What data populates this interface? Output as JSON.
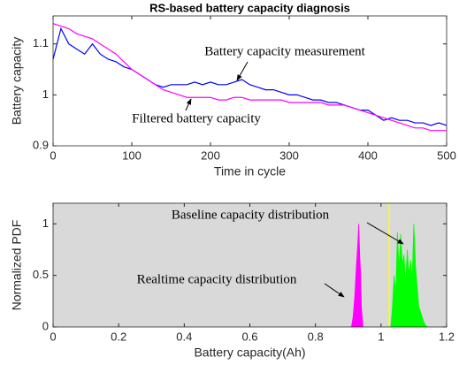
{
  "chart_data": [
    {
      "type": "line",
      "title": "RS-based battery capacity diagnosis",
      "xlabel": "Time in cycle",
      "ylabel": "Battery capacity",
      "x": [
        0,
        10,
        20,
        30,
        40,
        50,
        60,
        70,
        80,
        90,
        100,
        110,
        120,
        130,
        140,
        150,
        160,
        170,
        180,
        190,
        200,
        210,
        220,
        230,
        240,
        250,
        260,
        270,
        280,
        290,
        300,
        310,
        320,
        330,
        340,
        350,
        360,
        370,
        380,
        390,
        400,
        410,
        420,
        430,
        440,
        450,
        460,
        470,
        480,
        490,
        500
      ],
      "series": [
        {
          "name": "Battery capacity measurement",
          "color": "#0000ff",
          "values": [
            1.07,
            1.13,
            1.1,
            1.09,
            1.08,
            1.1,
            1.08,
            1.07,
            1.065,
            1.055,
            1.05,
            1.04,
            1.03,
            1.02,
            1.015,
            1.02,
            1.02,
            1.02,
            1.025,
            1.02,
            1.025,
            1.02,
            1.02,
            1.025,
            1.03,
            1.02,
            1.015,
            1.01,
            1.01,
            1.005,
            1.0,
            1.0,
            0.995,
            0.99,
            0.99,
            0.985,
            0.985,
            0.98,
            0.975,
            0.97,
            0.97,
            0.96,
            0.95,
            0.955,
            0.95,
            0.95,
            0.945,
            0.945,
            0.94,
            0.945,
            0.94
          ]
        },
        {
          "name": "Filtered battery capacity",
          "color": "#ff00ff",
          "values": [
            1.14,
            1.135,
            1.13,
            1.12,
            1.115,
            1.11,
            1.1,
            1.09,
            1.08,
            1.065,
            1.05,
            1.04,
            1.03,
            1.02,
            1.01,
            1.005,
            1.0,
            0.995,
            0.995,
            0.995,
            0.995,
            0.99,
            0.99,
            0.995,
            0.995,
            0.99,
            0.99,
            0.99,
            0.99,
            0.99,
            0.985,
            0.985,
            0.985,
            0.985,
            0.985,
            0.98,
            0.98,
            0.98,
            0.975,
            0.97,
            0.965,
            0.96,
            0.955,
            0.95,
            0.945,
            0.94,
            0.935,
            0.935,
            0.93,
            0.93,
            0.93
          ]
        }
      ],
      "xlim": [
        0,
        500
      ],
      "xticks": [
        0,
        100,
        200,
        300,
        400,
        500
      ],
      "ylim": [
        0.9,
        1.155
      ],
      "yticks": [
        0.9,
        1,
        1.1
      ],
      "annotations": [
        "Battery capacity measurement",
        "Filtered battery capacity"
      ]
    },
    {
      "type": "area",
      "xlabel": "Battery capacity(Ah)",
      "ylabel": "Normalized PDF",
      "background": "#d9d9d9",
      "series": [
        {
          "name": "Realtime capacity distribution",
          "color": "#ff00ff",
          "x": [
            0.91,
            0.915,
            0.92,
            0.925,
            0.928,
            0.93,
            0.932,
            0.935,
            0.938,
            0.94,
            0.945
          ],
          "values": [
            0,
            0.1,
            0.3,
            0.6,
            0.75,
            0.85,
            1.0,
            0.7,
            0.5,
            0.2,
            0
          ]
        },
        {
          "name": "Baseline capacity distribution",
          "color": "#00ff00",
          "x": [
            1.03,
            1.035,
            1.04,
            1.045,
            1.05,
            1.055,
            1.06,
            1.065,
            1.07,
            1.075,
            1.08,
            1.085,
            1.09,
            1.095,
            1.1,
            1.105,
            1.11,
            1.115,
            1.12,
            1.125,
            1.13,
            1.135,
            1.14
          ],
          "values": [
            0,
            0.2,
            0.5,
            0.3,
            0.92,
            0.55,
            0.9,
            0.6,
            0.7,
            0.4,
            0.75,
            0.5,
            0.65,
            0.45,
            1.0,
            0.6,
            0.4,
            0.2,
            0.15,
            0.1,
            0.05,
            0.02,
            0
          ]
        }
      ],
      "vline": 1.025,
      "vline_color": "#ffff00",
      "xlim": [
        0,
        1.2
      ],
      "xticks": [
        0,
        0.2,
        0.4,
        0.6,
        0.8,
        1,
        1.2
      ],
      "ylim": [
        0,
        1.2
      ],
      "yticks": [
        0,
        0.5,
        1
      ],
      "annotations": [
        "Baseline capacity distribution",
        "Realtime capacity distribution"
      ]
    }
  ]
}
